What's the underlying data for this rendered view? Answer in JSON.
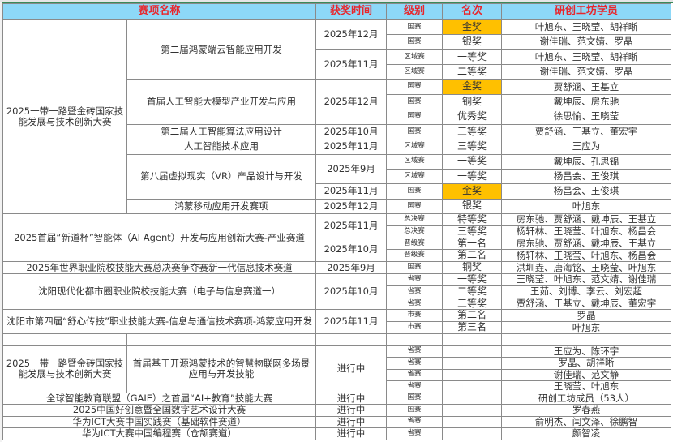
{
  "colors": {
    "header_bg": "#8dd8f8",
    "header_text": "#e8262c",
    "gold": "#ffc000"
  },
  "header": {
    "competition": "赛项名称",
    "date": "获奖时间",
    "level": "级别",
    "rank": "名次",
    "members": "研创工坊学员"
  },
  "competitions": [
    {
      "name": "2025一带一路暨金砖国家技能发展与技术创新大赛",
      "events": [
        {
          "name": "第二届鸿蒙端云智能应用开发",
          "dates": [
            {
              "date": "2025年12月",
              "awards": [
                {
                  "level": "国赛",
                  "rank": "金奖",
                  "members": "叶旭东、王晓莹、胡祥晰",
                  "highlight": true
                },
                {
                  "level": "国赛",
                  "rank": "银奖",
                  "members": "谢佳瑞、范文婧、罗晶"
                }
              ]
            },
            {
              "date": "2025年11月",
              "awards": [
                {
                  "level": "区域赛",
                  "rank": "一等奖",
                  "members": "叶旭东、王晓莹、胡祥晰"
                },
                {
                  "level": "区域赛",
                  "rank": "二等奖",
                  "members": "谢佳瑞、范文婧、罗晶"
                }
              ]
            }
          ]
        },
        {
          "name": "首届人工智能大模型产业开发与应用",
          "dates": [
            {
              "date": "2025年12月",
              "awards": [
                {
                  "level": "国赛",
                  "rank": "金奖",
                  "members": "贾舒涵、王基立",
                  "highlight": true
                },
                {
                  "level": "国赛",
                  "rank": "铜奖",
                  "members": "戴坤辰、房东驰"
                },
                {
                  "level": "国赛",
                  "rank": "优秀奖",
                  "members": "徐思愉、王晓莹"
                }
              ]
            }
          ]
        },
        {
          "name": "第二届人工智能算法应用设计",
          "dates": [
            {
              "date": "2025年10月",
              "awards": [
                {
                  "level": "国赛",
                  "rank": "三等奖",
                  "members": "贾舒涵、王基立、董宏宇"
                }
              ]
            }
          ]
        },
        {
          "name": "人工智能技术应用",
          "dates": [
            {
              "date": "2025年11月",
              "awards": [
                {
                  "level": "区域赛",
                  "rank": "三等奖",
                  "members": "王应为"
                }
              ]
            }
          ]
        },
        {
          "name": "第八届虚拟现实（VR）产品设计与开发",
          "dates": [
            {
              "date": "2025年9月",
              "awards": [
                {
                  "level": "区域赛",
                  "rank": "一等奖",
                  "members": "戴坤辰、孔思锦"
                },
                {
                  "level": "区域赛",
                  "rank": "一等奖",
                  "members": "杨昌会、王俊琪"
                }
              ]
            },
            {
              "date": "2025年11月",
              "awards": [
                {
                  "level": "国赛",
                  "rank": "金奖",
                  "members": "杨昌会、王俊琪",
                  "highlight": true
                }
              ]
            }
          ]
        },
        {
          "name": "鸿蒙移动应用开发赛项",
          "dates": [
            {
              "date": "2025年12月",
              "awards": [
                {
                  "level": "国赛",
                  "rank": "银奖",
                  "members": "叶旭东"
                }
              ]
            }
          ]
        }
      ]
    },
    {
      "name": "2025首届“新道杯”智能体（AI Agent）开发与应用创新大赛-产业赛道",
      "events": [
        {
          "dates": [
            {
              "date": "2025年11月",
              "awards": [
                {
                  "level": "总决赛",
                  "rank": "特等奖",
                  "members": "房东驰、贾舒涵、戴坤辰、王基立"
                },
                {
                  "level": "总决赛",
                  "rank": "三等奖",
                  "members": "杨轩林、王晓莹、叶旭东、杨昌会"
                }
              ]
            },
            {
              "date": "2025年10月",
              "awards": [
                {
                  "level": "晋级赛",
                  "rank": "第一名",
                  "members": "房东驰、贾舒涵、戴坤辰、王基立"
                },
                {
                  "level": "晋级赛",
                  "rank": "第二名",
                  "members": "杨轩林、王晓莹、叶旭东、杨昌会"
                }
              ]
            }
          ]
        }
      ]
    },
    {
      "name": "2025年世界职业院校技能大赛总决赛争夺赛新一代信息技术赛道",
      "events": [
        {
          "dates": [
            {
              "date": "2025年9月",
              "awards": [
                {
                  "level": "国赛",
                  "rank": "铜奖",
                  "members": "洪圳垚、唐海铭、王晓莹、叶旭东"
                }
              ]
            }
          ]
        }
      ]
    },
    {
      "name": "沈阳现代化都市圈职业院校技能大赛（电子与信息赛道一）",
      "events": [
        {
          "dates": [
            {
              "date": "2025年10月",
              "awards": [
                {
                  "level": "省赛",
                  "rank": "一等奖",
                  "members": "王晓莹、叶旭东、范文婧、谢佳瑞"
                },
                {
                  "level": "省赛",
                  "rank": "二等奖",
                  "members": "王茹、刘博、李云、刘宏超"
                },
                {
                  "level": "省赛",
                  "rank": "三等奖",
                  "members": "贾舒涵、王基立、戴坤辰、董宏宇"
                }
              ]
            }
          ]
        }
      ]
    },
    {
      "name": "沈阳市第四届“舒心传技”职业技能大赛-信息与通信技术赛项-鸿蒙应用开发",
      "events": [
        {
          "dates": [
            {
              "date": "2025年11月",
              "awards": [
                {
                  "level": "市赛",
                  "rank": "第二名",
                  "members": "罗晶"
                },
                {
                  "level": "市赛",
                  "rank": "第三名",
                  "members": "叶旭东"
                }
              ]
            }
          ]
        }
      ]
    },
    {
      "name": "",
      "events": [
        {
          "name": "",
          "dates": [
            {
              "date": "",
              "awards": [
                {
                  "level": "",
                  "rank": "",
                  "members": ""
                }
              ]
            }
          ]
        }
      ]
    },
    {
      "name": "2025一带一路暨金砖国家技能发展与技术创新大赛",
      "events": [
        {
          "name": "首届基于开源鸿蒙技术的智慧物联网多场景应用与开发技能",
          "dates": [
            {
              "date": "进行中",
              "awards": [
                {
                  "level": "省赛",
                  "rank": "",
                  "members": "王应为、陈环宇"
                },
                {
                  "level": "省赛",
                  "rank": "",
                  "members": "罗晶、胡祥晰"
                },
                {
                  "level": "省赛",
                  "rank": "",
                  "members": "谢佳瑞、范文静"
                },
                {
                  "level": "省赛",
                  "rank": "",
                  "members": "王晓莹、叶旭东"
                }
              ]
            }
          ]
        }
      ]
    },
    {
      "name": "全球智能教育联盟（GAIE）之首届“AI+教育”技能大赛",
      "events": [
        {
          "dates": [
            {
              "date": "进行中",
              "awards": [
                {
                  "level": "国赛",
                  "rank": "",
                  "members": "研创工坊成员（53人）"
                }
              ]
            }
          ]
        }
      ]
    },
    {
      "name": "2025中国好创意暨全国数字艺术设计大赛",
      "events": [
        {
          "dates": [
            {
              "date": "进行中",
              "awards": [
                {
                  "level": "国赛",
                  "rank": "",
                  "members": "罗春燕"
                }
              ]
            }
          ]
        }
      ]
    },
    {
      "name": "华为ICT大赛中国实践赛（基础软件赛道）",
      "events": [
        {
          "dates": [
            {
              "date": "进行中",
              "awards": [
                {
                  "level": "省赛",
                  "rank": "",
                  "members": "俞明杰、闫文泽、徐鹏智"
                }
              ]
            }
          ]
        }
      ]
    },
    {
      "name": "华为ICT大赛中国编程赛（仓颉赛道）",
      "events": [
        {
          "dates": [
            {
              "date": "进行中",
              "awards": [
                {
                  "level": "省赛",
                  "rank": "",
                  "members": "颜智凌"
                }
              ]
            }
          ]
        }
      ]
    }
  ]
}
